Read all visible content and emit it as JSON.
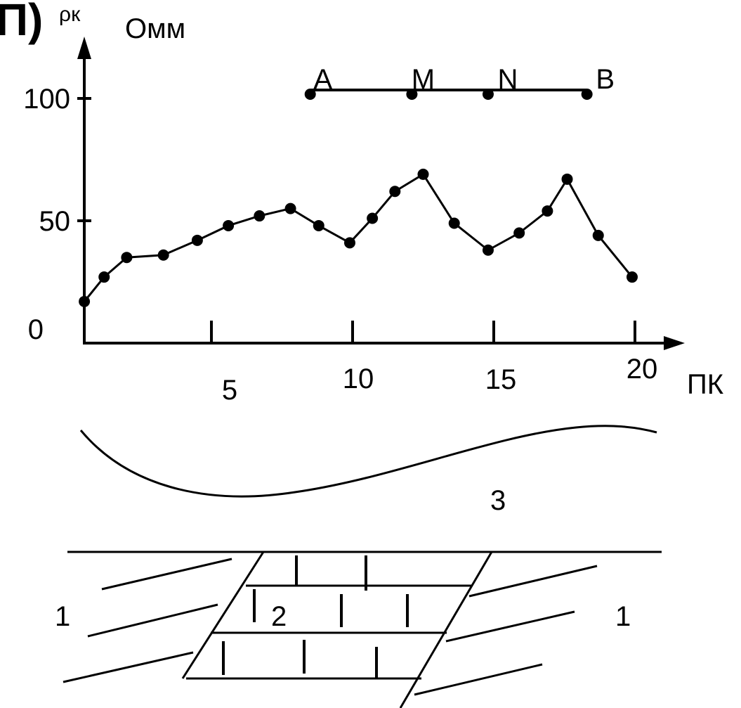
{
  "figure": {
    "panel_label": "П)",
    "geology_labels": {
      "left": "1",
      "center": "2",
      "overburden": "3",
      "right": "1"
    }
  },
  "chart_data": {
    "type": "line",
    "xlabel": "ПК",
    "ylabel_symbol": "ρк",
    "ylabel_unit": "Омм",
    "xlim": [
      0,
      21
    ],
    "ylim": [
      0,
      110
    ],
    "x_ticks": [
      {
        "value": 5,
        "label": "5"
      },
      {
        "value": 10,
        "label": "10"
      },
      {
        "value": 15,
        "label": "15"
      },
      {
        "value": 20,
        "label": "20"
      }
    ],
    "y_ticks": [
      {
        "value": 0,
        "label": "0"
      },
      {
        "value": 50,
        "label": "50"
      },
      {
        "value": 100,
        "label": "100"
      }
    ],
    "series": [
      {
        "x": [
          0.5,
          1.2,
          2.0,
          3.3,
          4.5,
          5.6,
          6.7,
          7.8,
          8.8,
          9.9,
          10.7,
          11.5,
          12.5,
          13.6,
          14.8,
          15.9,
          16.9,
          17.6,
          18.7,
          19.9
        ],
        "y": [
          17,
          27,
          35,
          36,
          42,
          48,
          52,
          55,
          48,
          41,
          51,
          62,
          69,
          49,
          38,
          45,
          54,
          67,
          44,
          27
        ]
      }
    ],
    "electrode_array": {
      "y": 100,
      "electrodes": [
        {
          "name": "A",
          "x": 8.5
        },
        {
          "name": "M",
          "x": 12.1
        },
        {
          "name": "N",
          "x": 14.8
        },
        {
          "name": "B",
          "x": 18.3
        }
      ]
    }
  }
}
